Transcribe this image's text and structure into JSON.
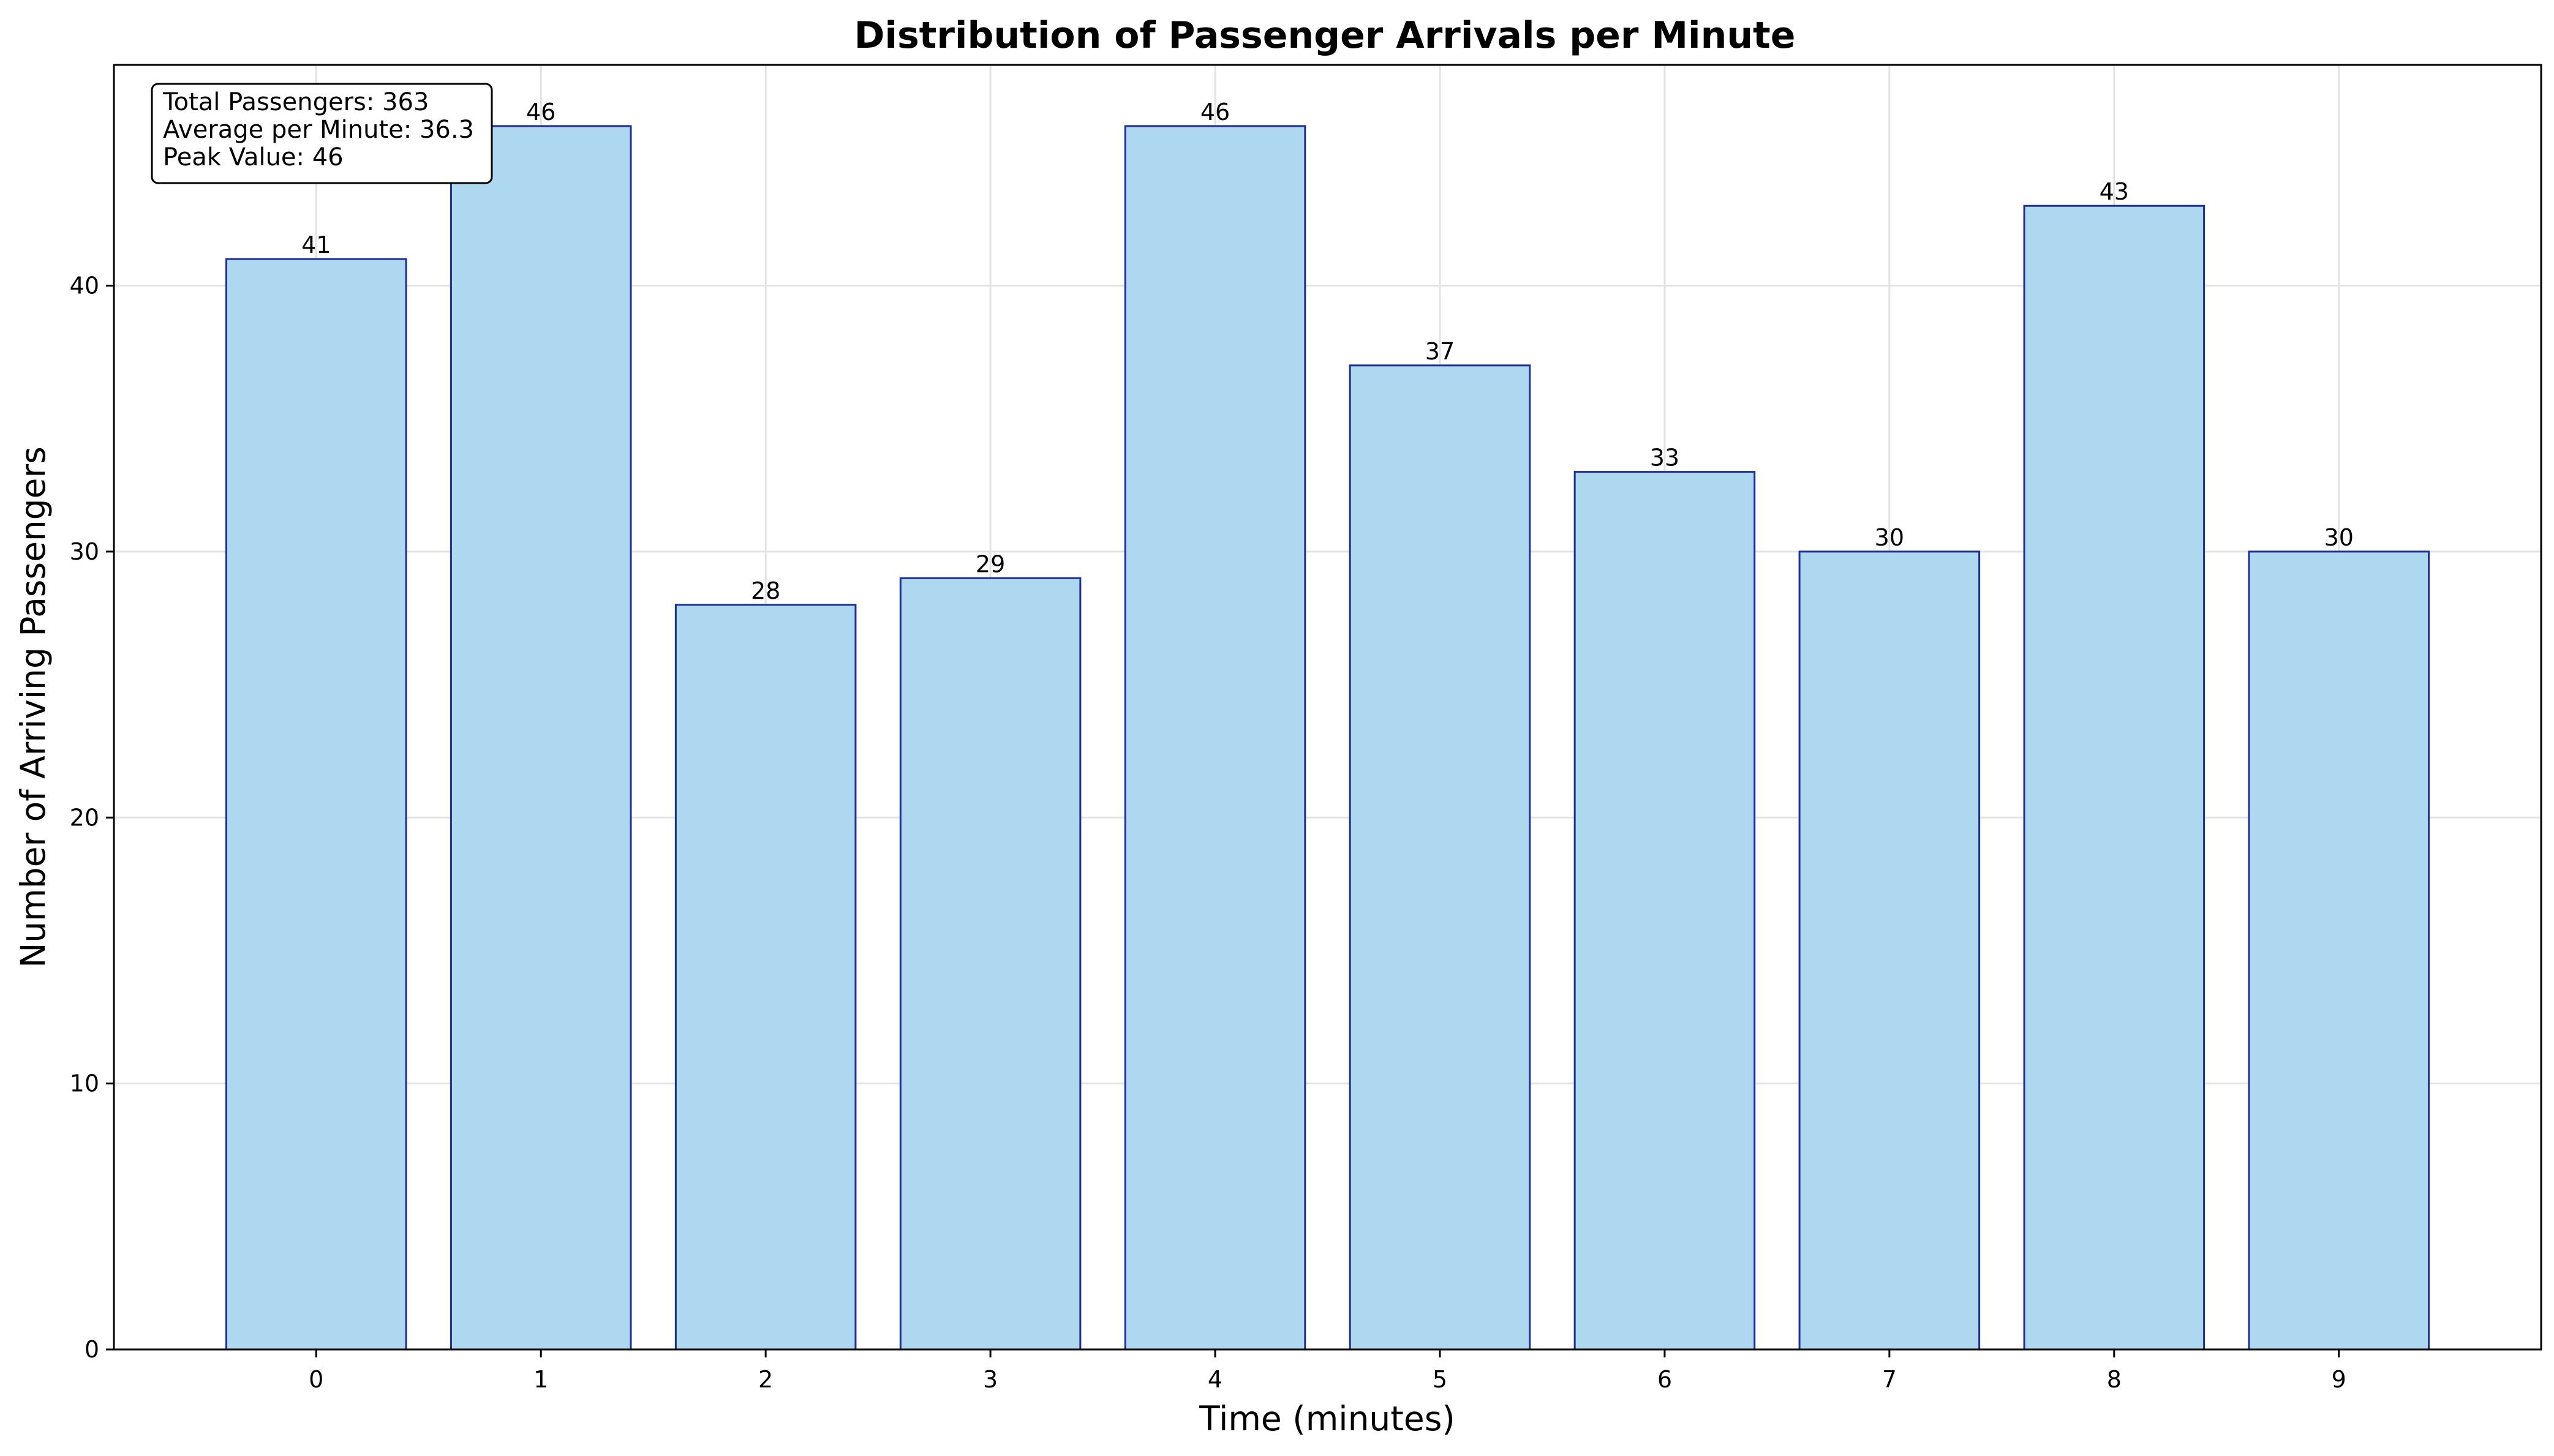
{
  "chart_data": {
    "type": "bar",
    "title": "Distribution of Passenger Arrivals per Minute",
    "xlabel": "Time (minutes)",
    "ylabel": "Number of Arriving Passengers",
    "categories": [
      "0",
      "1",
      "2",
      "3",
      "4",
      "5",
      "6",
      "7",
      "8",
      "9"
    ],
    "values": [
      41,
      46,
      28,
      29,
      46,
      37,
      33,
      30,
      43,
      30
    ],
    "data_labels": [
      "41",
      "46",
      "28",
      "29",
      "46",
      "37",
      "33",
      "30",
      "43",
      "30"
    ],
    "ylim": [
      0,
      48.3
    ],
    "xlim": [
      -0.9,
      9.9
    ],
    "yticks": [
      0,
      10,
      20,
      30,
      40
    ],
    "ytick_labels": [
      "0",
      "10",
      "20",
      "30",
      "40"
    ],
    "grid": true,
    "bar_color": "#add8ef",
    "bar_edge_color": "#1f2f96",
    "annotation": {
      "placement": "top-left",
      "lines": [
        "Total Passengers: 363",
        "Average per Minute: 36.3",
        "Peak Value: 46"
      ]
    }
  }
}
